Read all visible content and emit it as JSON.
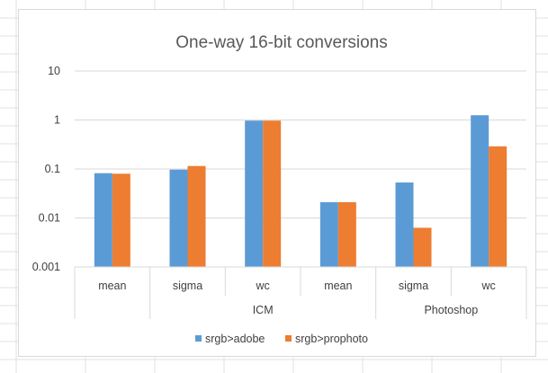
{
  "chart_data": {
    "type": "bar",
    "title": "One-way 16-bit conversions",
    "xlabel": "",
    "ylabel": "",
    "yscale": "log",
    "ylim": [
      0.001,
      10
    ],
    "yticks": [
      "10",
      "1",
      "0.1",
      "0.01",
      "0.001"
    ],
    "categories": [
      "mean",
      "sigma",
      "wc",
      "mean",
      "sigma",
      "wc"
    ],
    "groups": [
      {
        "label": "",
        "span": 1
      },
      {
        "label": "ICM",
        "span": 3
      },
      {
        "label": "Photoshop",
        "span": 2
      }
    ],
    "series": [
      {
        "name": "srgb>adobe",
        "color": "#5b9bd5",
        "values": [
          0.082,
          0.097,
          0.97,
          0.021,
          0.053,
          1.25
        ]
      },
      {
        "name": "srgb>prophoto",
        "color": "#ed7d31",
        "values": [
          0.08,
          0.115,
          0.97,
          0.021,
          0.0063,
          0.29
        ]
      }
    ],
    "grid": true,
    "legend": "bottom"
  }
}
